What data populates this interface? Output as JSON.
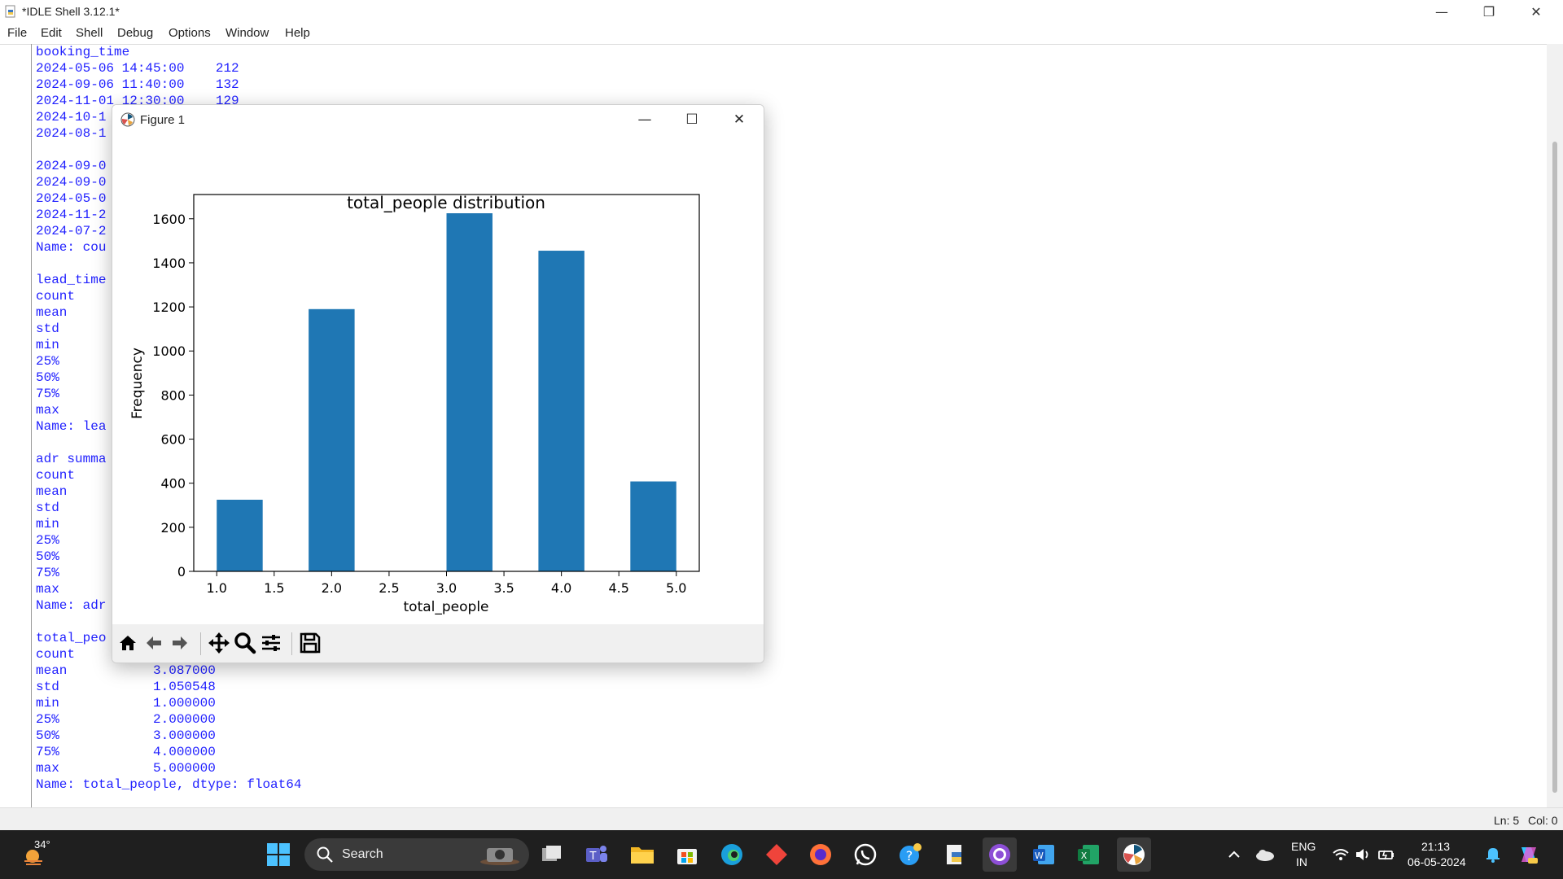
{
  "window": {
    "title": "*IDLE Shell 3.12.1*",
    "controls": {
      "minimize": "—",
      "restore": "❐",
      "close": "✕"
    }
  },
  "menu": [
    "File",
    "Edit",
    "Shell",
    "Debug",
    "Options",
    "Window",
    "Help"
  ],
  "shell": {
    "lines": [
      "booking_time",
      "2024-05-06 14:45:00    212",
      "2024-09-06 11:40:00    132",
      "2024-11-01 12:30:00    129",
      "2024-10-1",
      "2024-08-1",
      "",
      "2024-09-0",
      "2024-09-0",
      "2024-05-0",
      "2024-11-2",
      "2024-07-2",
      "Name: cou",
      "",
      "lead_time",
      "count    ",
      "mean",
      "std",
      "min",
      "25%",
      "50%",
      "75%",
      "max",
      "Name: lea",
      "",
      "adr summa",
      "count    ",
      "mean",
      "std",
      "min",
      "25%",
      "50%",
      "75%",
      "max",
      "Name: adr",
      "",
      "total_peo",
      "count    ",
      "mean           3.087000",
      "std            1.050548",
      "min            1.000000",
      "25%            2.000000",
      "50%            3.000000",
      "75%            4.000000",
      "max            5.000000",
      "Name: total_people, dtype: float64"
    ]
  },
  "status": {
    "line": "Ln: 5",
    "column": "Col: 0"
  },
  "figure": {
    "title": "Figure 1",
    "controls": {
      "minimize": "—",
      "maximize": "☐",
      "close": "✕"
    },
    "toolbar": [
      "home-icon",
      "back-arrow-icon",
      "forward-arrow-icon",
      "pan-icon",
      "zoom-icon",
      "configure-subplots-icon",
      "save-icon"
    ]
  },
  "chart_data": {
    "type": "bar",
    "title": "total_people distribution",
    "xlabel": "total_people",
    "ylabel": "Frequency",
    "bars": [
      {
        "x0": 1.0,
        "x1": 1.4,
        "value": 325
      },
      {
        "x0": 1.8,
        "x1": 2.2,
        "value": 1190
      },
      {
        "x0": 3.0,
        "x1": 3.4,
        "value": 1625
      },
      {
        "x0": 3.8,
        "x1": 4.2,
        "value": 1455
      },
      {
        "x0": 4.6,
        "x1": 5.0,
        "value": 408
      }
    ],
    "xlim": [
      0.8,
      5.2
    ],
    "ylim": [
      0,
      1710
    ],
    "xticks": [
      1.0,
      1.5,
      2.0,
      2.5,
      3.0,
      3.5,
      4.0,
      4.5,
      5.0
    ],
    "xtick_labels": [
      "1.0",
      "1.5",
      "2.0",
      "2.5",
      "3.0",
      "3.5",
      "4.0",
      "4.5",
      "5.0"
    ],
    "yticks": [
      0,
      200,
      400,
      600,
      800,
      1000,
      1200,
      1400,
      1600
    ],
    "ytick_labels": [
      "0",
      "200",
      "400",
      "600",
      "800",
      "1000",
      "1200",
      "1400",
      "1600"
    ],
    "bar_color": "#1f77b4",
    "grid": false
  },
  "taskbar": {
    "weather": "34°",
    "search_label": "Search",
    "tray": {
      "lang_top": "ENG",
      "lang_bottom": "IN",
      "time": "21:13",
      "date": "06-05-2024"
    }
  }
}
